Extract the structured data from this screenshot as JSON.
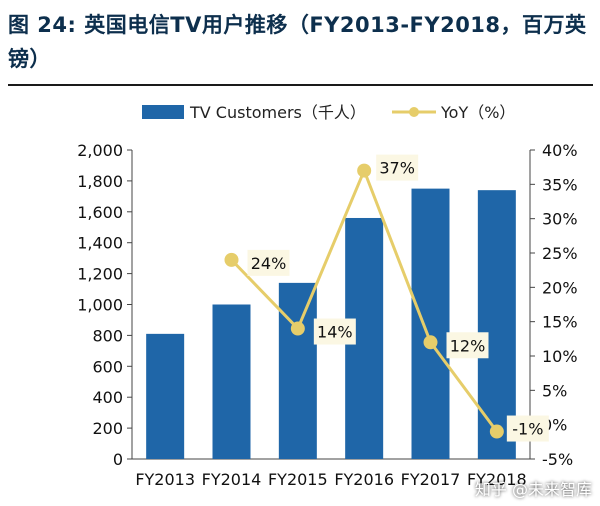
{
  "title": "图 24: 英国电信TV用户推移（FY2013-FY2018，百万英镑）",
  "watermark": "知乎 @未来智库",
  "colors": {
    "bar": "#1f66a8",
    "line": "#e6cd6a",
    "label_bg": "#fbf7e3",
    "axis": "#444444"
  },
  "chart_data": {
    "type": "bar",
    "categories": [
      "FY2013",
      "FY2014",
      "FY2015",
      "FY2016",
      "FY2017",
      "FY2018"
    ],
    "series": [
      {
        "name": "TV Customers（千人）",
        "type": "bar",
        "axis": "left",
        "values": [
          810,
          1000,
          1140,
          1560,
          1750,
          1740
        ]
      },
      {
        "name": "YoY（%）",
        "type": "line",
        "axis": "right",
        "values": [
          null,
          24,
          14,
          37,
          12,
          -1
        ],
        "labels": [
          "",
          "24%",
          "14%",
          "37%",
          "12%",
          "-1%"
        ]
      }
    ],
    "ylim_left": [
      0,
      2000
    ],
    "yticks_left": [
      "0",
      "200",
      "400",
      "600",
      "800",
      "1,000",
      "1,200",
      "1,400",
      "1,600",
      "1,800",
      "2,000"
    ],
    "ylim_right": [
      -5,
      40
    ],
    "yticks_right": [
      "-5%",
      "0%",
      "5%",
      "10%",
      "15%",
      "20%",
      "25%",
      "30%",
      "35%",
      "40%"
    ],
    "legend_position": "top",
    "grid": false
  }
}
